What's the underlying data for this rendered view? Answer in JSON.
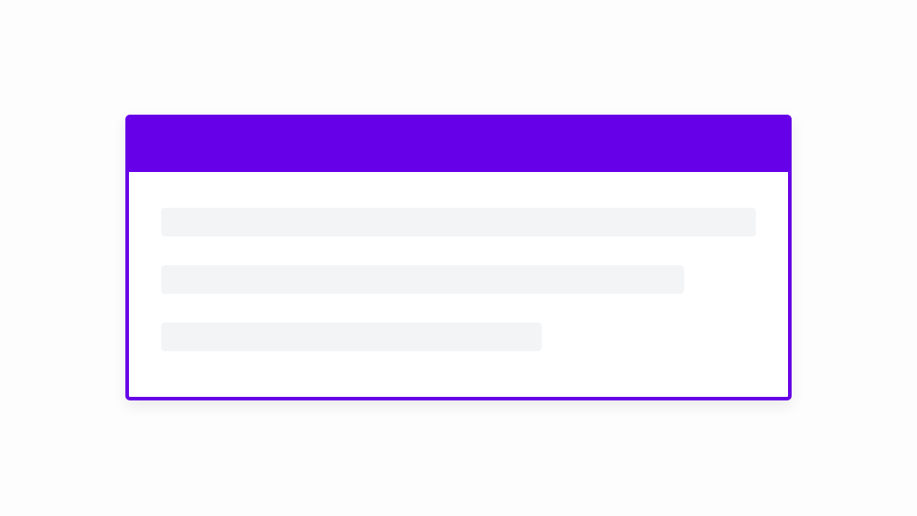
{
  "colors": {
    "accent": "#6600e8",
    "skeleton": "#f3f4f6",
    "background": "#fdfdfd"
  },
  "card": {
    "state": "loading",
    "skeleton_lines": [
      {
        "width_fraction": 1.0
      },
      {
        "width_fraction": 0.88
      },
      {
        "width_fraction": 0.64
      }
    ]
  }
}
